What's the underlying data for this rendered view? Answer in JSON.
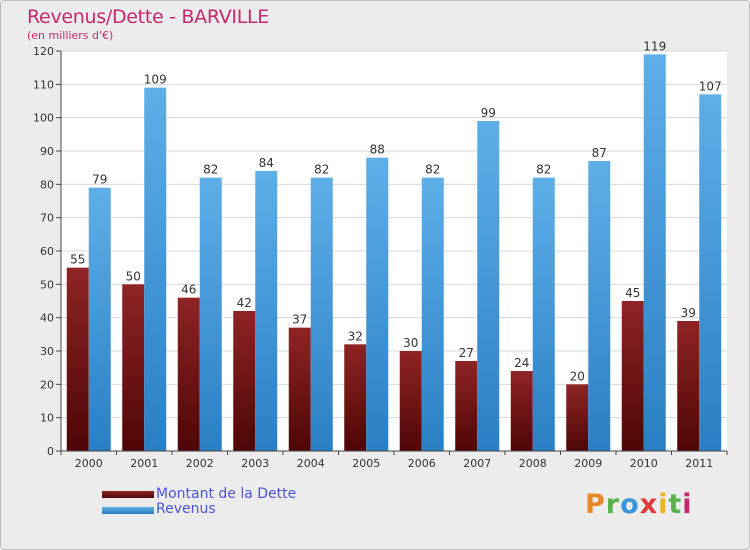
{
  "title": "Revenus/Dette - BARVILLE",
  "subtitle": "(en milliers d'€)",
  "logo_text": "Proxiti",
  "colors": {
    "frame_background": "#ececec",
    "title": "#c6286c",
    "dette_bar": "#7b1416",
    "revenus_bar": "#3d95d9",
    "legend_text": "#4b55d6"
  },
  "chart_data": {
    "type": "bar",
    "title": "Revenus/Dette - BARVILLE",
    "subtitle": "(en milliers d'€)",
    "xlabel": "",
    "ylabel": "",
    "ylim": [
      0,
      120
    ],
    "y_ticks": [
      0,
      10,
      20,
      30,
      40,
      50,
      60,
      70,
      80,
      90,
      100,
      110,
      120
    ],
    "grid": true,
    "legend_position": "bottom-left",
    "categories": [
      "2000",
      "2001",
      "2002",
      "2003",
      "2004",
      "2005",
      "2006",
      "2007",
      "2008",
      "2009",
      "2010",
      "2011"
    ],
    "series": [
      {
        "name": "Montant de la Dette",
        "color": "#7b1416",
        "values": [
          55,
          50,
          46,
          42,
          37,
          32,
          30,
          27,
          24,
          20,
          45,
          39
        ]
      },
      {
        "name": "Revenus",
        "color": "#3d95d9",
        "values": [
          79,
          109,
          82,
          84,
          82,
          88,
          82,
          99,
          82,
          87,
          119,
          107
        ]
      }
    ]
  }
}
